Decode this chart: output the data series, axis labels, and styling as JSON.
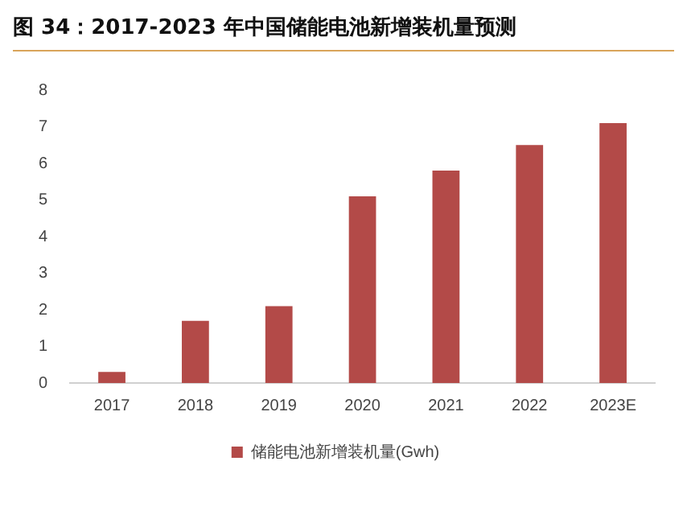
{
  "chart_data": {
    "type": "bar",
    "title": "图 34：2017-2023 年中国储能电池新增装机量预测",
    "categories": [
      "2017",
      "2018",
      "2019",
      "2020",
      "2021",
      "2022",
      "2023E"
    ],
    "series": [
      {
        "name": "储能电池新增装机量(Gwh)",
        "color": "#b34a48",
        "values": [
          0.3,
          1.7,
          2.1,
          5.1,
          5.8,
          6.5,
          7.1
        ]
      }
    ],
    "ylim": [
      0,
      8
    ],
    "yticks": [
      0,
      1,
      2,
      3,
      4,
      5,
      6,
      7,
      8
    ],
    "grid": false,
    "legend": "bottom"
  }
}
